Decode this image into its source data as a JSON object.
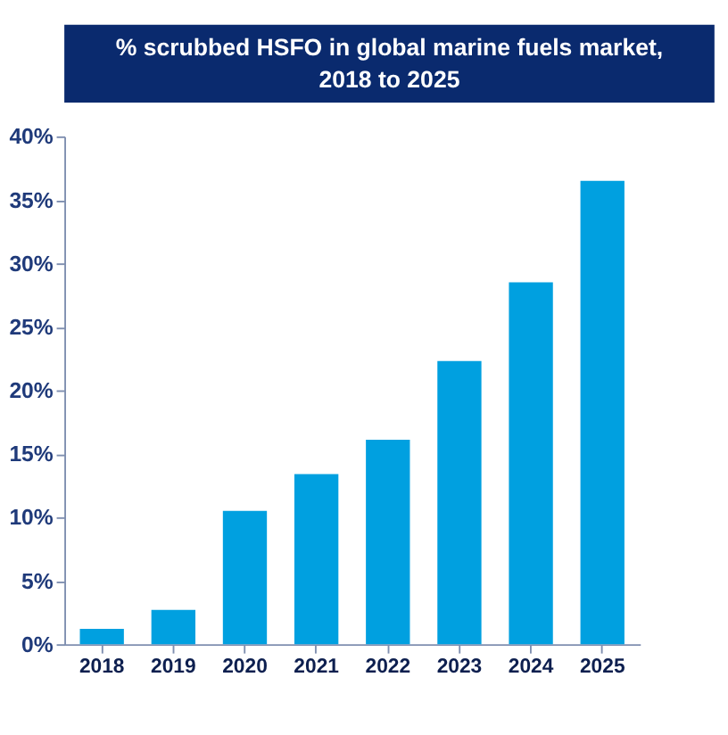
{
  "chart_data": {
    "type": "bar",
    "title": "% scrubbed HSFO in global marine fuels market, 2018  to 2025",
    "categories": [
      "2018",
      "2019",
      "2020",
      "2021",
      "2022",
      "2023",
      "2024",
      "2025"
    ],
    "values": [
      0.012,
      0.027,
      0.105,
      0.134,
      0.161,
      0.223,
      0.285,
      0.365
    ],
    "color": "#00a0e0",
    "ylim": [
      0,
      0.4
    ],
    "yticks": [
      {
        "value": 0,
        "label": "0%"
      },
      {
        "value": 0.05,
        "label": "5%"
      },
      {
        "value": 0.1,
        "label": "10%"
      },
      {
        "value": 0.15,
        "label": "15%"
      },
      {
        "value": 0.2,
        "label": "20%"
      },
      {
        "value": 0.25,
        "label": "25%"
      },
      {
        "value": 0.3,
        "label": "30%"
      },
      {
        "value": 0.35,
        "label": "35%"
      },
      {
        "value": 0.4,
        "label": "40%"
      }
    ],
    "grid": false
  }
}
